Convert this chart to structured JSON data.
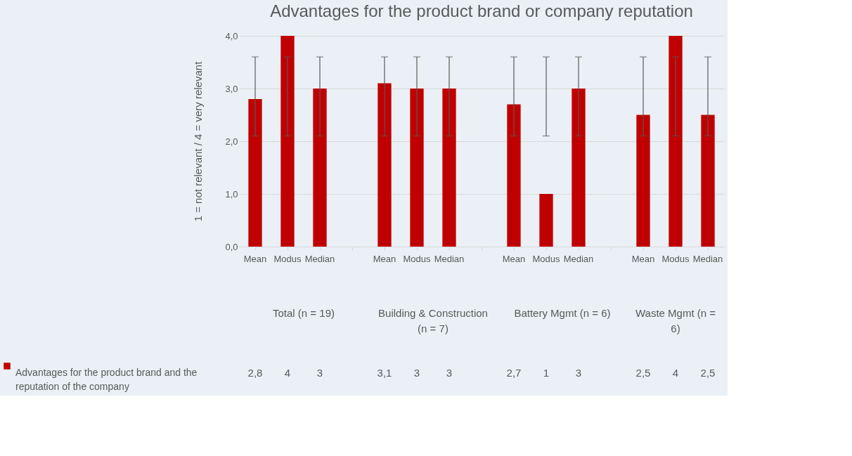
{
  "chart_data": {
    "type": "bar",
    "title": "Advantages for the product brand or company reputation",
    "ylabel": "1 = not relevant / 4 = very relevant",
    "categories": [
      "Mean",
      "Modus",
      "Median",
      null,
      "Mean",
      "Modus",
      "Median",
      null,
      "Mean",
      "Modus",
      "Median",
      null,
      "Mean",
      "Modus",
      "Median"
    ],
    "series": [
      {
        "name": "Advantages for the product brand and the reputation of the company",
        "color": "#c00000",
        "values": [
          2.8,
          4,
          3,
          null,
          3.1,
          3,
          3,
          null,
          2.7,
          1,
          3,
          null,
          2.5,
          4,
          2.5
        ],
        "errors": [
          [
            2.1,
            3.6
          ],
          [
            2.1,
            3.6
          ],
          [
            2.1,
            3.6
          ],
          null,
          [
            2.1,
            3.6
          ],
          [
            2.1,
            3.6
          ],
          [
            2.1,
            3.6
          ],
          null,
          [
            2.1,
            3.6
          ],
          [
            2.1,
            3.6
          ],
          [
            2.1,
            3.6
          ],
          null,
          [
            2.1,
            3.6
          ],
          [
            2.1,
            3.6
          ],
          [
            2.1,
            3.6
          ]
        ],
        "value_labels": [
          "2,8",
          "4",
          "3",
          null,
          "3,1",
          "3",
          "3",
          null,
          "2,7",
          "1",
          "3",
          null,
          "2,5",
          "4",
          "2,5"
        ]
      }
    ],
    "annotations": [
      "Total (n = 19)",
      "Building & Construction (n = 7)",
      "Battery Mgmt (n = 6)",
      "Waste Mgmt (n = 6)"
    ],
    "ylim": [
      0,
      4
    ],
    "yticks": [
      {
        "value": 0,
        "label": "0,0"
      },
      {
        "value": 1,
        "label": "1,0"
      },
      {
        "value": 2,
        "label": "2,0"
      },
      {
        "value": 3,
        "label": "3,0"
      },
      {
        "value": 4,
        "label": "4,0"
      }
    ],
    "grid": "y",
    "legend": "bottom left"
  }
}
